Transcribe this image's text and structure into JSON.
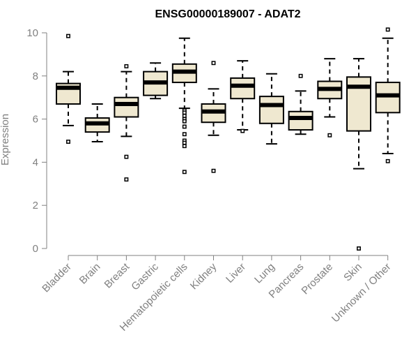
{
  "chart_data": {
    "type": "boxplot",
    "title": "ENSG00000189007 - ADAT2",
    "xlabel": "",
    "ylabel": "Expression",
    "ylim": [
      0,
      10
    ],
    "yticks": [
      "0",
      "2",
      "4",
      "6",
      "8",
      "10"
    ],
    "grid": false,
    "legend": "none",
    "colors": {
      "box_fill": "#efe8d0",
      "box_stroke": "#000000",
      "median": "#000000",
      "axis": "#808080",
      "title": "#000000"
    },
    "categories": [
      "Bladder",
      "Brain",
      "Breast",
      "Gastric",
      "Hematopoietic cells",
      "Kidney",
      "Liver",
      "Lung",
      "Pancreas",
      "Prostate",
      "Skin",
      "Unknown / Other"
    ],
    "boxes": [
      {
        "name": "Bladder",
        "whisker_low": 5.7,
        "q1": 6.7,
        "median": 7.45,
        "q3": 7.65,
        "whisker_high": 8.2,
        "outliers": [
          9.85,
          4.95
        ]
      },
      {
        "name": "Brain",
        "whisker_low": 4.95,
        "q1": 5.4,
        "median": 5.8,
        "q3": 6.05,
        "whisker_high": 6.7,
        "outliers": []
      },
      {
        "name": "Breast",
        "whisker_low": 5.2,
        "q1": 6.1,
        "median": 6.7,
        "q3": 7.0,
        "whisker_high": 8.2,
        "outliers": [
          8.45,
          4.25,
          3.2
        ]
      },
      {
        "name": "Gastric",
        "whisker_low": 6.95,
        "q1": 7.1,
        "median": 7.7,
        "q3": 8.2,
        "whisker_high": 8.6,
        "outliers": []
      },
      {
        "name": "Hematopoietic cells",
        "whisker_low": 6.5,
        "q1": 7.7,
        "median": 8.2,
        "q3": 8.55,
        "whisker_high": 9.75,
        "outliers": [
          6.4,
          6.3,
          6.15,
          6.0,
          5.9,
          5.65,
          5.3,
          5.0,
          4.9,
          4.75,
          3.55
        ]
      },
      {
        "name": "Kidney",
        "whisker_low": 5.25,
        "q1": 5.85,
        "median": 6.35,
        "q3": 6.7,
        "whisker_high": 7.4,
        "outliers": [
          8.6,
          3.6
        ]
      },
      {
        "name": "Liver",
        "whisker_low": 5.5,
        "q1": 6.95,
        "median": 7.55,
        "q3": 7.9,
        "whisker_high": 8.7,
        "outliers": [
          5.45
        ]
      },
      {
        "name": "Lung",
        "whisker_low": 4.85,
        "q1": 5.8,
        "median": 6.65,
        "q3": 7.05,
        "whisker_high": 8.1,
        "outliers": []
      },
      {
        "name": "Pancreas",
        "whisker_low": 5.3,
        "q1": 5.5,
        "median": 6.05,
        "q3": 6.35,
        "whisker_high": 7.3,
        "outliers": [
          8.0
        ]
      },
      {
        "name": "Prostate",
        "whisker_low": 6.1,
        "q1": 6.95,
        "median": 7.4,
        "q3": 7.75,
        "whisker_high": 8.8,
        "outliers": [
          5.25
        ]
      },
      {
        "name": "Skin",
        "whisker_low": 3.7,
        "q1": 5.45,
        "median": 7.5,
        "q3": 7.95,
        "whisker_high": 8.8,
        "outliers": [
          0.0
        ]
      },
      {
        "name": "Unknown / Other",
        "whisker_low": 4.4,
        "q1": 6.3,
        "median": 7.1,
        "q3": 7.7,
        "whisker_high": 9.75,
        "outliers": [
          10.15,
          4.05
        ]
      }
    ]
  }
}
